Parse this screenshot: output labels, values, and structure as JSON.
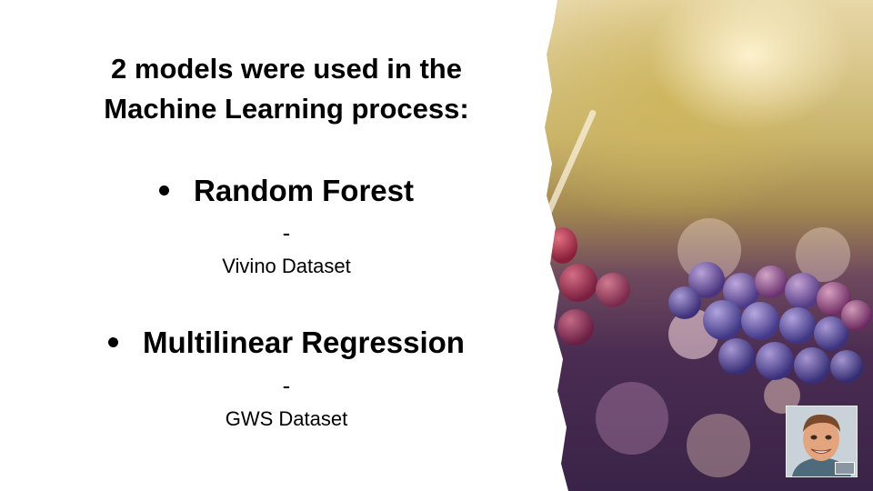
{
  "slide": {
    "title_line1": "2 models were used in the",
    "title_line2": "Machine Learning process:",
    "items": [
      {
        "label": "Random Forest",
        "dash": "-",
        "dataset": "Vivino Dataset"
      },
      {
        "label": "Multilinear Regression",
        "dash": "-",
        "dataset": "GWS Dataset"
      }
    ]
  },
  "image": {
    "subject": "red wine grape clusters",
    "colors": [
      "#3a2348",
      "#6f4a5e",
      "#c9b46c",
      "#e8d8a8"
    ]
  },
  "webcam": {
    "icon": "presenter-video-icon"
  }
}
